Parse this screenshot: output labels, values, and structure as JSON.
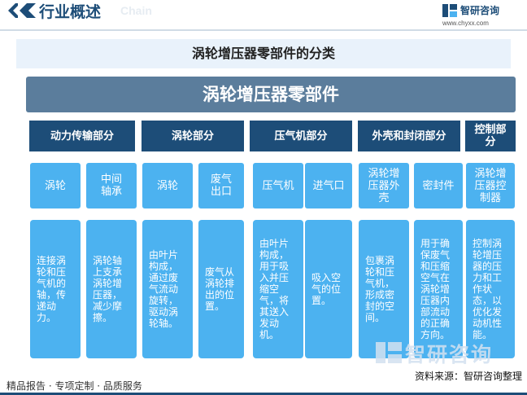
{
  "header": {
    "title": "行业概述",
    "ghost": "Chain"
  },
  "logo": {
    "name": "智研咨询",
    "url": "www.chyxx.com"
  },
  "subtitle": "涡轮增压器零部件的分类",
  "root": "涡轮增压器零部件",
  "categories": [
    "动力传输部分",
    "涡轮部分",
    "压气机部分",
    "外壳和封闭部分",
    "控制部分"
  ],
  "components": [
    {
      "name": "涡轮",
      "desc": "连接涡轮和压气机的轴，传递动力。"
    },
    {
      "name": "中间轴承",
      "desc": "涡轮轴上支承涡轮增压器，减少摩擦。"
    },
    {
      "name": "涡轮",
      "desc": "由叶片构成，通过废气流动旋转，驱动涡轮轴。"
    },
    {
      "name": "废气出口",
      "desc": "废气从涡轮排出的位置。"
    },
    {
      "name": "压气机",
      "desc": "由叶片构成，用于吸入并压缩空气，将其送入发动机。"
    },
    {
      "name": "进气口",
      "desc": "吸入空气的位置。"
    },
    {
      "name": "涡轮增压器外壳",
      "desc": "包裹涡轮和压气机，形成密封的空间。"
    },
    {
      "name": "密封件",
      "desc": "用于确保废气和压缩空气在涡轮增压器内部流动的正确方向。"
    },
    {
      "name": "涡轮增压器控制器",
      "desc": "控制涡轮增压器的压力和工作状态，以优化发动机性能。"
    }
  ],
  "watermark": "智研咨询",
  "footer": {
    "left": "精品报告 · 专项定制 · 品质服务",
    "right": "资料来源：智研咨询整理"
  },
  "colors": {
    "dark_blue": "#1d4d78",
    "root_gray_blue": "#5b7d9c",
    "light_blue": "#4cb2f0",
    "subtitle_bg": "#e9f2fb"
  }
}
